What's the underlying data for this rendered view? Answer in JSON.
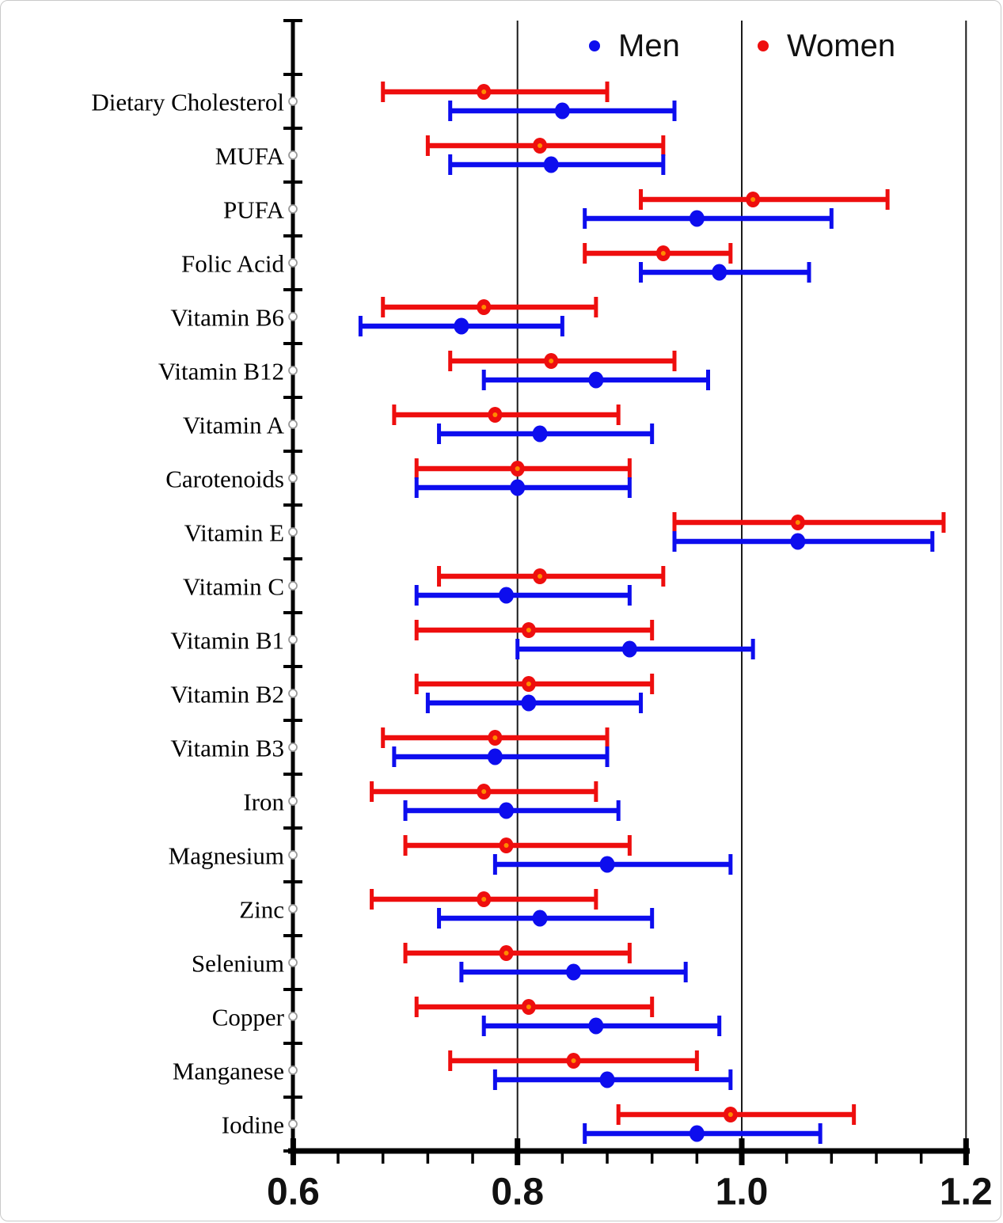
{
  "figure": {
    "background": "#ffffff",
    "border_color": "#c9c9c9"
  },
  "legend": {
    "position": "top",
    "items": [
      {
        "label": "Men",
        "color": "#0d0dee",
        "marker": "dot"
      },
      {
        "label": "Women",
        "color": "#ee0e0e",
        "marker": "dot"
      }
    ]
  },
  "colors": {
    "men": "#0d0dee",
    "women": "#ee0e0e",
    "women_marker_center": "#ff8a00",
    "axis": "#000000",
    "reference_line": "#1a1a1a",
    "category_marker_fill": "#ffffff",
    "category_marker_stroke": "#9a9a9a"
  },
  "chart_data": {
    "type": "scatter",
    "subtype": "forest-plot-horizontal-ci",
    "title": "",
    "xlabel": "",
    "ylabel": "",
    "xlim": [
      0.6,
      1.2
    ],
    "x_major_ticks": [
      0.6,
      0.8,
      1.0,
      1.2
    ],
    "x_tick_labels": [
      "0.6",
      "0.8",
      "1.0",
      "1.2"
    ],
    "x_minor_tick_step": 0.04,
    "reference_lines_x": [
      0.8,
      1.0,
      1.2
    ],
    "grid": "off",
    "legend_position": "top-inside",
    "categories": [
      "Dietary Cholesterol",
      "MUFA",
      "PUFA",
      "Folic Acid",
      "Vitamin B6",
      "Vitamin B12",
      "Vitamin A",
      "Carotenoids",
      "Vitamin E",
      "Vitamin C",
      "Vitamin B1",
      "Vitamin B2",
      "Vitamin B3",
      "Iron",
      "Magnesium",
      "Zinc",
      "Selenium",
      "Copper",
      "Manganese",
      "Iodine"
    ],
    "series": [
      {
        "name": "Women",
        "color": "#ee0e0e",
        "row_position": "upper",
        "points": [
          {
            "value": 0.77,
            "lo": 0.68,
            "hi": 0.88
          },
          {
            "value": 0.82,
            "lo": 0.72,
            "hi": 0.93
          },
          {
            "value": 1.01,
            "lo": 0.91,
            "hi": 1.13
          },
          {
            "value": 0.93,
            "lo": 0.86,
            "hi": 0.99
          },
          {
            "value": 0.77,
            "lo": 0.68,
            "hi": 0.87
          },
          {
            "value": 0.83,
            "lo": 0.74,
            "hi": 0.94
          },
          {
            "value": 0.78,
            "lo": 0.69,
            "hi": 0.89
          },
          {
            "value": 0.8,
            "lo": 0.71,
            "hi": 0.9
          },
          {
            "value": 1.05,
            "lo": 0.94,
            "hi": 1.18
          },
          {
            "value": 0.82,
            "lo": 0.73,
            "hi": 0.93
          },
          {
            "value": 0.81,
            "lo": 0.71,
            "hi": 0.92
          },
          {
            "value": 0.81,
            "lo": 0.71,
            "hi": 0.92
          },
          {
            "value": 0.78,
            "lo": 0.68,
            "hi": 0.88
          },
          {
            "value": 0.77,
            "lo": 0.67,
            "hi": 0.87
          },
          {
            "value": 0.79,
            "lo": 0.7,
            "hi": 0.9
          },
          {
            "value": 0.77,
            "lo": 0.67,
            "hi": 0.87
          },
          {
            "value": 0.79,
            "lo": 0.7,
            "hi": 0.9
          },
          {
            "value": 0.81,
            "lo": 0.71,
            "hi": 0.92
          },
          {
            "value": 0.85,
            "lo": 0.74,
            "hi": 0.96
          },
          {
            "value": 0.99,
            "lo": 0.89,
            "hi": 1.1
          }
        ]
      },
      {
        "name": "Men",
        "color": "#0d0dee",
        "row_position": "lower",
        "points": [
          {
            "value": 0.84,
            "lo": 0.74,
            "hi": 0.94
          },
          {
            "value": 0.83,
            "lo": 0.74,
            "hi": 0.93
          },
          {
            "value": 0.96,
            "lo": 0.86,
            "hi": 1.08
          },
          {
            "value": 0.98,
            "lo": 0.91,
            "hi": 1.06
          },
          {
            "value": 0.75,
            "lo": 0.66,
            "hi": 0.84
          },
          {
            "value": 0.87,
            "lo": 0.77,
            "hi": 0.97
          },
          {
            "value": 0.82,
            "lo": 0.73,
            "hi": 0.92
          },
          {
            "value": 0.8,
            "lo": 0.71,
            "hi": 0.9
          },
          {
            "value": 1.05,
            "lo": 0.94,
            "hi": 1.17
          },
          {
            "value": 0.79,
            "lo": 0.71,
            "hi": 0.9
          },
          {
            "value": 0.9,
            "lo": 0.8,
            "hi": 1.01
          },
          {
            "value": 0.81,
            "lo": 0.72,
            "hi": 0.91
          },
          {
            "value": 0.78,
            "lo": 0.69,
            "hi": 0.88
          },
          {
            "value": 0.79,
            "lo": 0.7,
            "hi": 0.89
          },
          {
            "value": 0.88,
            "lo": 0.78,
            "hi": 0.99
          },
          {
            "value": 0.82,
            "lo": 0.73,
            "hi": 0.92
          },
          {
            "value": 0.85,
            "lo": 0.75,
            "hi": 0.95
          },
          {
            "value": 0.87,
            "lo": 0.77,
            "hi": 0.98
          },
          {
            "value": 0.88,
            "lo": 0.78,
            "hi": 0.99
          },
          {
            "value": 0.96,
            "lo": 0.86,
            "hi": 1.07
          }
        ]
      }
    ]
  }
}
